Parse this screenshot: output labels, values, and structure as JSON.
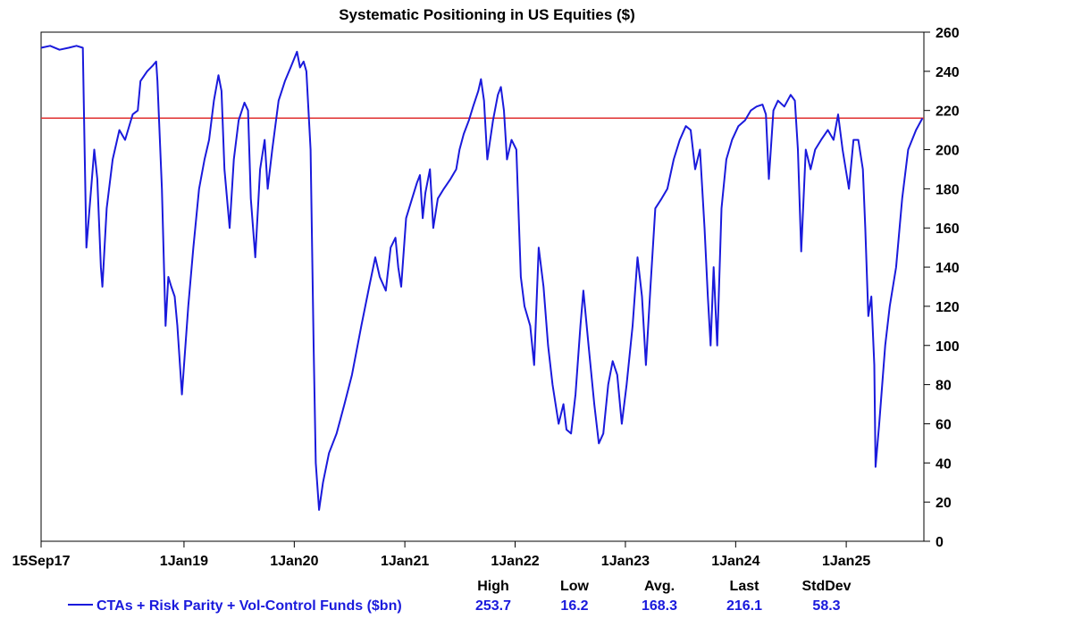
{
  "chart_data": {
    "type": "line",
    "title": "Systematic Positioning in US Equities ($)",
    "xlabel": "",
    "ylabel": "",
    "x_tick_labels": [
      "15Sep17",
      "1Jan19",
      "1Jan20",
      "1Jan21",
      "1Jan22",
      "1Jan23",
      "1Jan24",
      "1Jan25"
    ],
    "x_tick_dates": [
      "2017-09-15",
      "2019-01-01",
      "2020-01-01",
      "2021-01-01",
      "2022-01-01",
      "2023-01-01",
      "2024-01-01",
      "2025-01-01"
    ],
    "x_range": [
      "2017-09-15",
      "2025-09-15"
    ],
    "y_ticks": [
      0,
      20,
      40,
      60,
      80,
      100,
      120,
      140,
      160,
      180,
      200,
      220,
      240,
      260
    ],
    "ylim": [
      0,
      260
    ],
    "y_axis_side": "right",
    "grid": false,
    "reference_line": {
      "y": 216.1,
      "color": "#e03030"
    },
    "series": [
      {
        "name": "CTAs + Risk Parity + Vol-Control Funds ($bn)",
        "color": "#1a1adc",
        "points": [
          [
            "2017-09-15",
            252
          ],
          [
            "2017-10-15",
            253
          ],
          [
            "2017-11-15",
            251
          ],
          [
            "2017-12-15",
            252
          ],
          [
            "2018-01-10",
            253
          ],
          [
            "2018-01-31",
            252
          ],
          [
            "2018-02-06",
            200
          ],
          [
            "2018-02-12",
            150
          ],
          [
            "2018-02-25",
            175
          ],
          [
            "2018-03-10",
            200
          ],
          [
            "2018-03-20",
            185
          ],
          [
            "2018-04-01",
            140
          ],
          [
            "2018-04-06",
            130
          ],
          [
            "2018-04-20",
            170
          ],
          [
            "2018-05-10",
            195
          ],
          [
            "2018-06-01",
            210
          ],
          [
            "2018-06-20",
            205
          ],
          [
            "2018-07-15",
            218
          ],
          [
            "2018-08-01",
            220
          ],
          [
            "2018-08-10",
            235
          ],
          [
            "2018-09-01",
            240
          ],
          [
            "2018-09-20",
            243
          ],
          [
            "2018-10-01",
            245
          ],
          [
            "2018-10-05",
            235
          ],
          [
            "2018-10-20",
            180
          ],
          [
            "2018-11-01",
            110
          ],
          [
            "2018-11-10",
            135
          ],
          [
            "2018-11-20",
            130
          ],
          [
            "2018-12-01",
            125
          ],
          [
            "2018-12-10",
            110
          ],
          [
            "2018-12-25",
            75
          ],
          [
            "2019-01-15",
            120
          ],
          [
            "2019-02-01",
            150
          ],
          [
            "2019-02-20",
            180
          ],
          [
            "2019-03-10",
            195
          ],
          [
            "2019-03-25",
            205
          ],
          [
            "2019-04-10",
            225
          ],
          [
            "2019-04-25",
            238
          ],
          [
            "2019-05-05",
            230
          ],
          [
            "2019-05-15",
            190
          ],
          [
            "2019-06-01",
            160
          ],
          [
            "2019-06-15",
            195
          ],
          [
            "2019-07-01",
            215
          ],
          [
            "2019-07-20",
            224
          ],
          [
            "2019-08-01",
            220
          ],
          [
            "2019-08-10",
            175
          ],
          [
            "2019-08-25",
            145
          ],
          [
            "2019-09-10",
            190
          ],
          [
            "2019-09-25",
            205
          ],
          [
            "2019-10-05",
            180
          ],
          [
            "2019-10-20",
            200
          ],
          [
            "2019-11-10",
            225
          ],
          [
            "2019-12-01",
            235
          ],
          [
            "2019-12-20",
            242
          ],
          [
            "2020-01-10",
            250
          ],
          [
            "2020-01-20",
            242
          ],
          [
            "2020-02-01",
            245
          ],
          [
            "2020-02-10",
            240
          ],
          [
            "2020-02-24",
            200
          ],
          [
            "2020-03-05",
            100
          ],
          [
            "2020-03-12",
            40
          ],
          [
            "2020-03-23",
            16
          ],
          [
            "2020-04-05",
            30
          ],
          [
            "2020-04-25",
            45
          ],
          [
            "2020-05-20",
            55
          ],
          [
            "2020-06-15",
            70
          ],
          [
            "2020-07-10",
            85
          ],
          [
            "2020-08-10",
            110
          ],
          [
            "2020-09-05",
            130
          ],
          [
            "2020-09-25",
            145
          ],
          [
            "2020-10-10",
            135
          ],
          [
            "2020-10-30",
            128
          ],
          [
            "2020-11-15",
            150
          ],
          [
            "2020-12-01",
            155
          ],
          [
            "2020-12-10",
            140
          ],
          [
            "2020-12-20",
            130
          ],
          [
            "2021-01-05",
            165
          ],
          [
            "2021-01-25",
            175
          ],
          [
            "2021-02-10",
            183
          ],
          [
            "2021-02-20",
            187
          ],
          [
            "2021-03-01",
            165
          ],
          [
            "2021-03-10",
            178
          ],
          [
            "2021-03-25",
            190
          ],
          [
            "2021-04-05",
            160
          ],
          [
            "2021-04-20",
            175
          ],
          [
            "2021-05-10",
            180
          ],
          [
            "2021-06-01",
            185
          ],
          [
            "2021-06-20",
            190
          ],
          [
            "2021-07-01",
            200
          ],
          [
            "2021-07-15",
            208
          ],
          [
            "2021-08-01",
            215
          ],
          [
            "2021-08-15",
            222
          ],
          [
            "2021-09-01",
            230
          ],
          [
            "2021-09-10",
            236
          ],
          [
            "2021-09-20",
            225
          ],
          [
            "2021-10-01",
            195
          ],
          [
            "2021-10-20",
            215
          ],
          [
            "2021-11-05",
            228
          ],
          [
            "2021-11-15",
            232
          ],
          [
            "2021-11-25",
            220
          ],
          [
            "2021-12-05",
            195
          ],
          [
            "2021-12-20",
            205
          ],
          [
            "2022-01-05",
            200
          ],
          [
            "2022-01-20",
            135
          ],
          [
            "2022-02-01",
            120
          ],
          [
            "2022-02-20",
            110
          ],
          [
            "2022-03-05",
            90
          ],
          [
            "2022-03-20",
            150
          ],
          [
            "2022-04-05",
            130
          ],
          [
            "2022-04-20",
            100
          ],
          [
            "2022-05-05",
            80
          ],
          [
            "2022-05-25",
            60
          ],
          [
            "2022-06-10",
            70
          ],
          [
            "2022-06-20",
            57
          ],
          [
            "2022-07-05",
            55
          ],
          [
            "2022-07-20",
            75
          ],
          [
            "2022-08-05",
            110
          ],
          [
            "2022-08-15",
            128
          ],
          [
            "2022-09-01",
            100
          ],
          [
            "2022-09-20",
            70
          ],
          [
            "2022-10-05",
            50
          ],
          [
            "2022-10-20",
            55
          ],
          [
            "2022-11-05",
            80
          ],
          [
            "2022-11-20",
            92
          ],
          [
            "2022-12-05",
            85
          ],
          [
            "2022-12-20",
            60
          ],
          [
            "2023-01-05",
            80
          ],
          [
            "2023-01-25",
            110
          ],
          [
            "2023-02-10",
            145
          ],
          [
            "2023-02-25",
            125
          ],
          [
            "2023-03-10",
            90
          ],
          [
            "2023-03-25",
            130
          ],
          [
            "2023-04-10",
            170
          ],
          [
            "2023-05-01",
            175
          ],
          [
            "2023-05-20",
            180
          ],
          [
            "2023-06-10",
            195
          ],
          [
            "2023-06-30",
            205
          ],
          [
            "2023-07-20",
            212
          ],
          [
            "2023-08-05",
            210
          ],
          [
            "2023-08-20",
            190
          ],
          [
            "2023-09-05",
            200
          ],
          [
            "2023-09-20",
            160
          ],
          [
            "2023-10-01",
            125
          ],
          [
            "2023-10-10",
            100
          ],
          [
            "2023-10-20",
            140
          ],
          [
            "2023-11-01",
            100
          ],
          [
            "2023-11-15",
            170
          ],
          [
            "2023-12-01",
            195
          ],
          [
            "2023-12-20",
            205
          ],
          [
            "2024-01-10",
            212
          ],
          [
            "2024-02-01",
            215
          ],
          [
            "2024-02-20",
            220
          ],
          [
            "2024-03-10",
            222
          ],
          [
            "2024-03-30",
            223
          ],
          [
            "2024-04-10",
            218
          ],
          [
            "2024-04-20",
            185
          ],
          [
            "2024-05-05",
            220
          ],
          [
            "2024-05-20",
            225
          ],
          [
            "2024-06-10",
            222
          ],
          [
            "2024-07-01",
            228
          ],
          [
            "2024-07-15",
            225
          ],
          [
            "2024-07-25",
            200
          ],
          [
            "2024-08-05",
            148
          ],
          [
            "2024-08-20",
            200
          ],
          [
            "2024-09-05",
            190
          ],
          [
            "2024-09-20",
            200
          ],
          [
            "2024-10-10",
            205
          ],
          [
            "2024-11-01",
            210
          ],
          [
            "2024-11-20",
            205
          ],
          [
            "2024-12-05",
            218
          ],
          [
            "2024-12-20",
            200
          ],
          [
            "2025-01-10",
            180
          ],
          [
            "2025-01-25",
            205
          ],
          [
            "2025-02-10",
            205
          ],
          [
            "2025-02-25",
            190
          ],
          [
            "2025-03-05",
            160
          ],
          [
            "2025-03-15",
            115
          ],
          [
            "2025-03-25",
            125
          ],
          [
            "2025-04-04",
            90
          ],
          [
            "2025-04-08",
            38
          ],
          [
            "2025-04-20",
            60
          ],
          [
            "2025-05-10",
            100
          ],
          [
            "2025-05-25",
            120
          ],
          [
            "2025-06-15",
            140
          ],
          [
            "2025-07-05",
            175
          ],
          [
            "2025-07-25",
            200
          ],
          [
            "2025-08-20",
            210
          ],
          [
            "2025-09-10",
            216
          ]
        ]
      }
    ],
    "stats": {
      "headers": [
        "High",
        "Low",
        "Avg.",
        "Last",
        "StdDev"
      ],
      "values": [
        "253.7",
        "16.2",
        "168.3",
        "216.1",
        "58.3"
      ]
    },
    "legend_position": "bottom-left"
  }
}
